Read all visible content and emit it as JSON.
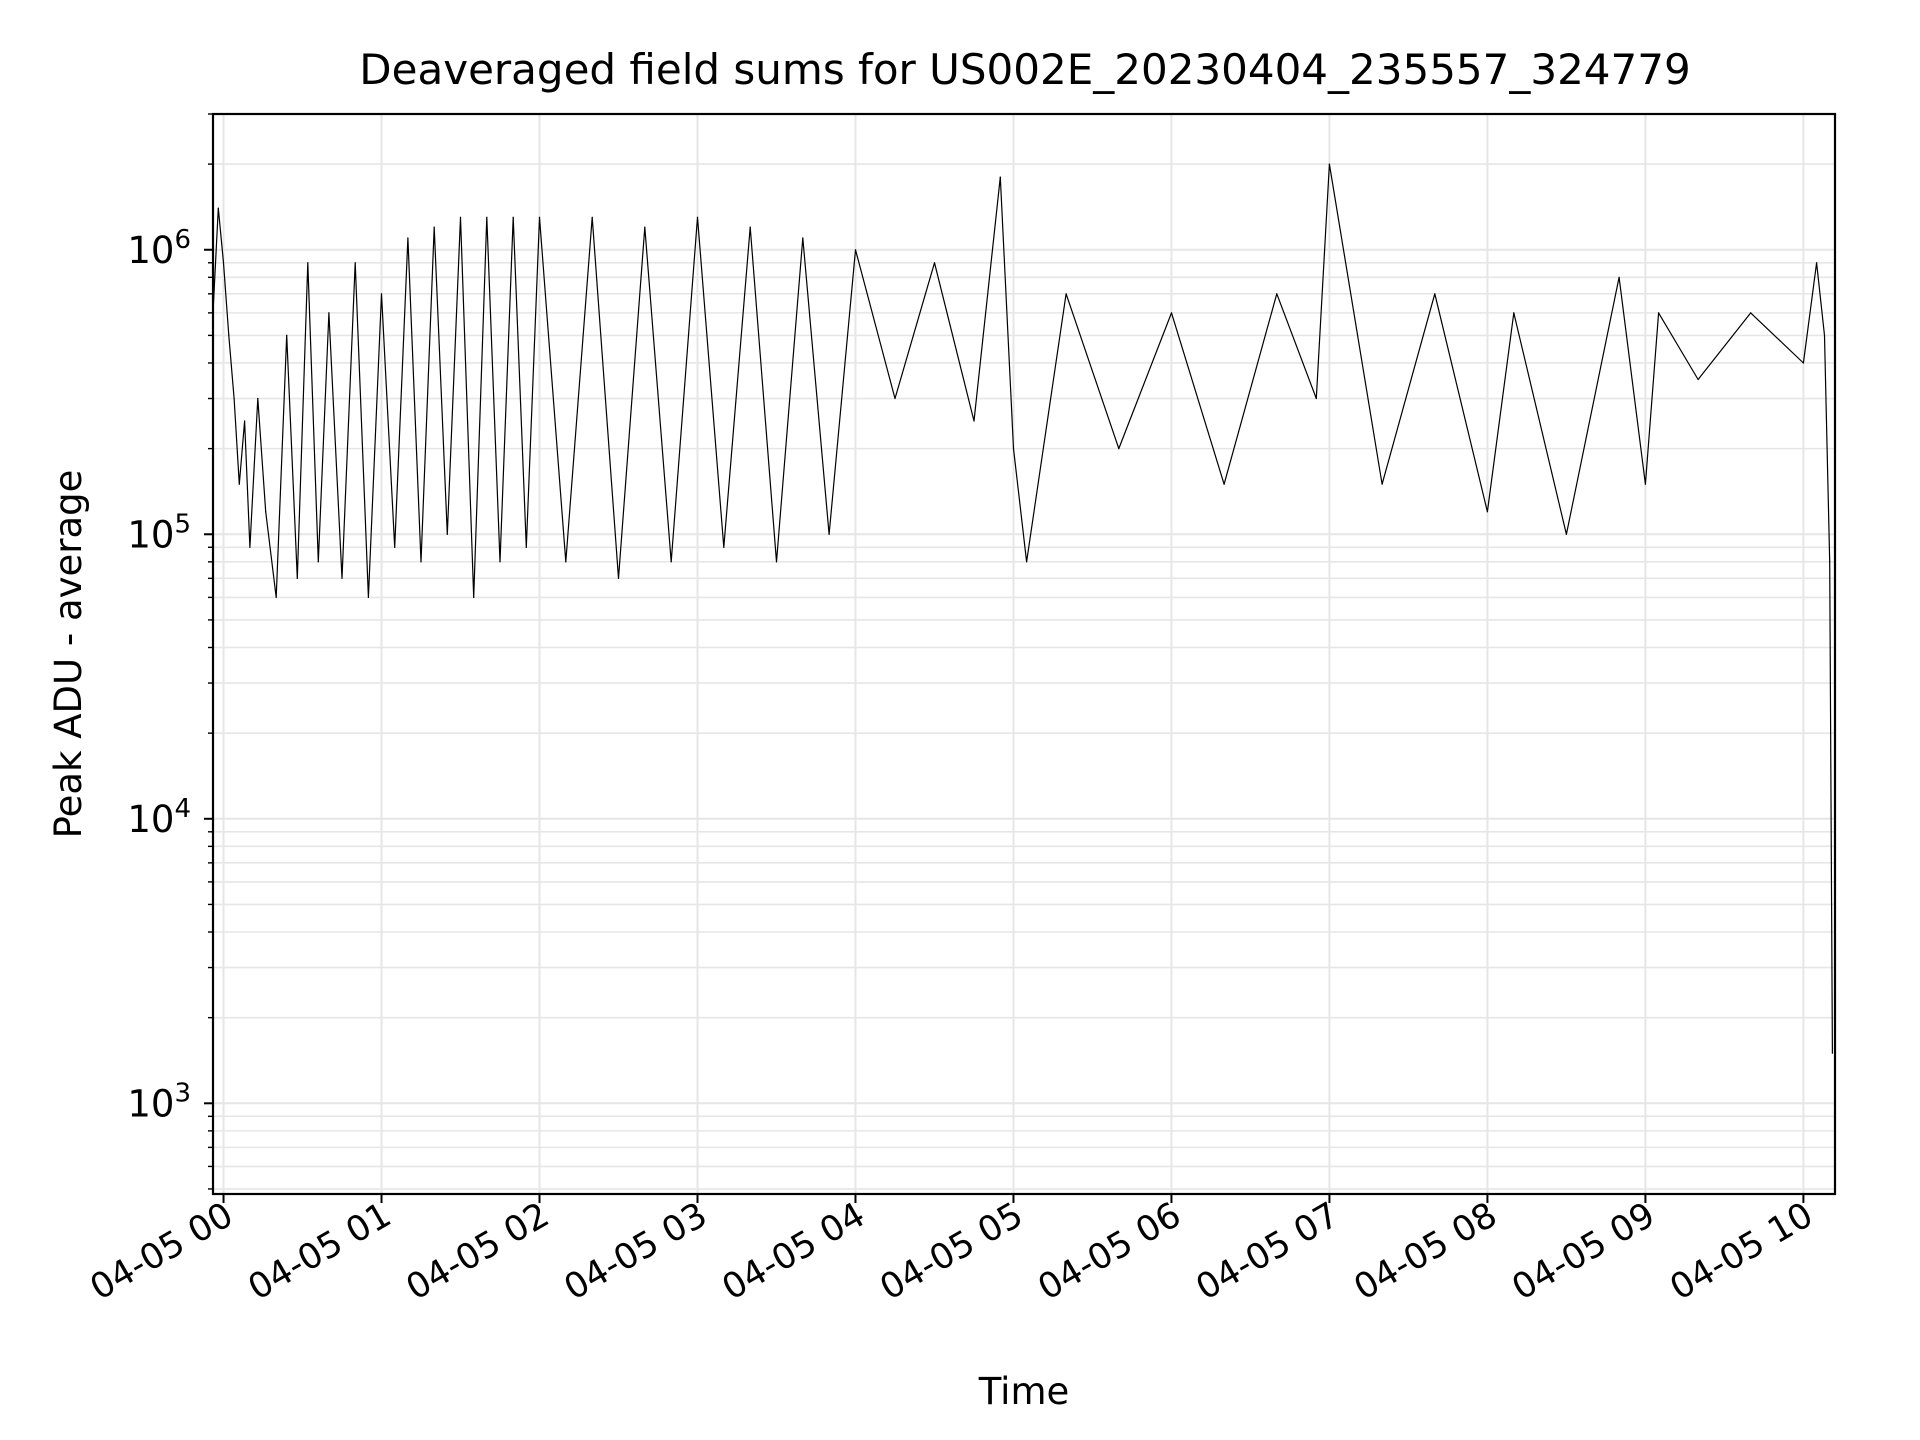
{
  "chart_data": {
    "type": "line",
    "title": "Deaveraged field sums for US002E_20230404_235557_324779",
    "xlabel": "Time",
    "ylabel": "Peak ADU - average",
    "yscale": "log",
    "grid": true,
    "xlim": [
      "2023-04-04 23:56",
      "2023-04-05 10:12"
    ],
    "ylim": [
      480,
      3000000
    ],
    "x_ticks": [
      {
        "t": "2023-04-05 00:00",
        "label": "04-05 00"
      },
      {
        "t": "2023-04-05 01:00",
        "label": "04-05 01"
      },
      {
        "t": "2023-04-05 02:00",
        "label": "04-05 02"
      },
      {
        "t": "2023-04-05 03:00",
        "label": "04-05 03"
      },
      {
        "t": "2023-04-05 04:00",
        "label": "04-05 04"
      },
      {
        "t": "2023-04-05 05:00",
        "label": "04-05 05"
      },
      {
        "t": "2023-04-05 06:00",
        "label": "04-05 06"
      },
      {
        "t": "2023-04-05 07:00",
        "label": "04-05 07"
      },
      {
        "t": "2023-04-05 08:00",
        "label": "04-05 08"
      },
      {
        "t": "2023-04-05 09:00",
        "label": "04-05 09"
      },
      {
        "t": "2023-04-05 10:00",
        "label": "04-05 10"
      }
    ],
    "y_ticks": [
      {
        "value": 1000,
        "base": "10",
        "exp": "3"
      },
      {
        "value": 10000,
        "base": "10",
        "exp": "4"
      },
      {
        "value": 100000,
        "base": "10",
        "exp": "5"
      },
      {
        "value": 1000000,
        "base": "10",
        "exp": "6"
      }
    ],
    "line_color": "#000000",
    "grid_color": "#e6e6e6",
    "series": [
      {
        "x": [
          "2023-04-04 23:56",
          "2023-04-04 23:58",
          "2023-04-05 00:00",
          "2023-04-05 00:02",
          "2023-04-05 00:04",
          "2023-04-05 00:06",
          "2023-04-05 00:08",
          "2023-04-05 00:10",
          "2023-04-05 00:13",
          "2023-04-05 00:16",
          "2023-04-05 00:20",
          "2023-04-05 00:24",
          "2023-04-05 00:28",
          "2023-04-05 00:32",
          "2023-04-05 00:36",
          "2023-04-05 00:40",
          "2023-04-05 00:45",
          "2023-04-05 00:50",
          "2023-04-05 00:55",
          "2023-04-05 01:00",
          "2023-04-05 01:05",
          "2023-04-05 01:10",
          "2023-04-05 01:15",
          "2023-04-05 01:20",
          "2023-04-05 01:25",
          "2023-04-05 01:30",
          "2023-04-05 01:35",
          "2023-04-05 01:40",
          "2023-04-05 01:45",
          "2023-04-05 01:50",
          "2023-04-05 01:55",
          "2023-04-05 02:00",
          "2023-04-05 02:10",
          "2023-04-05 02:20",
          "2023-04-05 02:30",
          "2023-04-05 02:40",
          "2023-04-05 02:50",
          "2023-04-05 03:00",
          "2023-04-05 03:10",
          "2023-04-05 03:20",
          "2023-04-05 03:30",
          "2023-04-05 03:40",
          "2023-04-05 03:50",
          "2023-04-05 04:00",
          "2023-04-05 04:15",
          "2023-04-05 04:30",
          "2023-04-05 04:45",
          "2023-04-05 04:55",
          "2023-04-05 05:00",
          "2023-04-05 05:05",
          "2023-04-05 05:20",
          "2023-04-05 05:40",
          "2023-04-05 06:00",
          "2023-04-05 06:20",
          "2023-04-05 06:40",
          "2023-04-05 06:55",
          "2023-04-05 07:00",
          "2023-04-05 07:20",
          "2023-04-05 07:40",
          "2023-04-05 08:00",
          "2023-04-05 08:10",
          "2023-04-05 08:30",
          "2023-04-05 08:50",
          "2023-04-05 09:00",
          "2023-04-05 09:05",
          "2023-04-05 09:20",
          "2023-04-05 09:40",
          "2023-04-05 10:00",
          "2023-04-05 10:05",
          "2023-04-05 10:08",
          "2023-04-05 10:10",
          "2023-04-05 10:11"
        ],
        "y": [
          600000,
          1400000,
          900000,
          500000,
          300000,
          150000,
          250000,
          90000,
          300000,
          120000,
          60000,
          500000,
          70000,
          900000,
          80000,
          600000,
          70000,
          900000,
          60000,
          700000,
          90000,
          1100000,
          80000,
          1200000,
          100000,
          1300000,
          60000,
          1300000,
          80000,
          1300000,
          90000,
          1300000,
          80000,
          1300000,
          70000,
          1200000,
          80000,
          1300000,
          90000,
          1200000,
          80000,
          1100000,
          100000,
          1000000,
          300000,
          900000,
          250000,
          1800000,
          200000,
          80000,
          700000,
          200000,
          600000,
          150000,
          700000,
          300000,
          2000000,
          150000,
          700000,
          120000,
          600000,
          100000,
          800000,
          150000,
          600000,
          350000,
          600000,
          400000,
          900000,
          500000,
          80000,
          1500
        ]
      }
    ]
  }
}
